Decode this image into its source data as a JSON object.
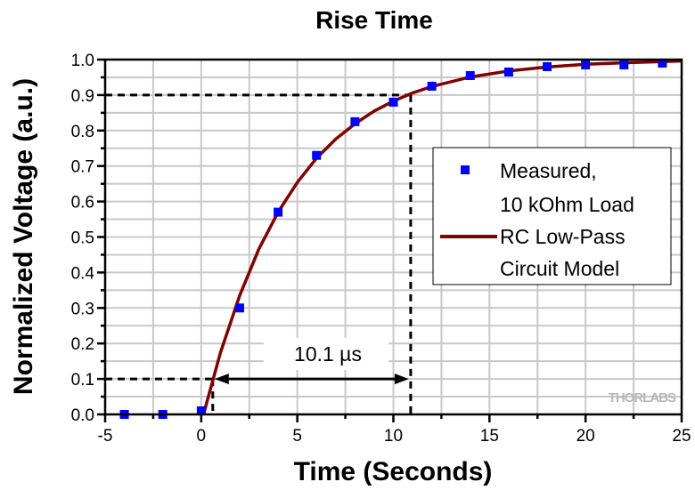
{
  "chart_data": {
    "type": "scatter",
    "title": "Rise Time",
    "xlabel": "Time (Seconds)",
    "ylabel": "Normalized Voltage (a.u.)",
    "xlim": [
      -5,
      25
    ],
    "ylim": [
      0,
      1.0
    ],
    "xticks": [
      "-5",
      "0",
      "5",
      "10",
      "15",
      "20",
      "25"
    ],
    "yticks": [
      "0.0",
      "0.1",
      "0.2",
      "0.3",
      "0.4",
      "0.5",
      "0.6",
      "0.7",
      "0.8",
      "0.9",
      "1.0"
    ],
    "grid": true,
    "legend_position": "right",
    "series": [
      {
        "name": "Measured, 10 kOhm Load",
        "type": "scatter",
        "color": "#0000FF",
        "x": [
          -4,
          -2,
          0,
          2,
          4,
          6,
          8,
          10,
          12,
          14,
          16,
          18,
          20,
          22,
          24
        ],
        "y": [
          0.0,
          0.0,
          0.01,
          0.3,
          0.57,
          0.73,
          0.825,
          0.88,
          0.925,
          0.955,
          0.965,
          0.98,
          0.985,
          0.985,
          0.99
        ]
      },
      {
        "name": "RC Low-Pass Circuit Model",
        "type": "line",
        "color": "#800000",
        "x": [
          0.12,
          1,
          2,
          3,
          4,
          5,
          6,
          7,
          8,
          9,
          10,
          11,
          12,
          14,
          16,
          18,
          20,
          22,
          25
        ],
        "y": [
          0,
          0.174,
          0.335,
          0.466,
          0.57,
          0.654,
          0.722,
          0.776,
          0.819,
          0.855,
          0.883,
          0.906,
          0.924,
          0.951,
          0.968,
          0.979,
          0.987,
          0.991,
          0.996
        ]
      }
    ],
    "legend": [
      "Measured,",
      "10 kOhm Load",
      "RC Low-Pass",
      "Circuit Model"
    ],
    "annotation": {
      "text": "10.1 µs",
      "from": [
        0.6,
        0.1
      ],
      "to": [
        10.9,
        0.9
      ]
    },
    "watermark": "THORLABS"
  }
}
